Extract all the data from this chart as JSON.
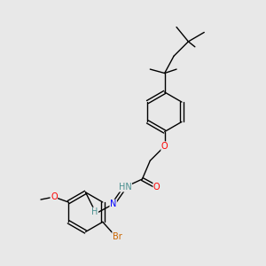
{
  "background_color": "#e8e8e8",
  "bond_color": "#000000",
  "atom_colors": {
    "O": "#ff0000",
    "N": "#0000ff",
    "Br": "#cc6600",
    "H": "#4a9090",
    "C": "#000000"
  },
  "figsize": [
    3.0,
    3.0
  ],
  "dpi": 100
}
